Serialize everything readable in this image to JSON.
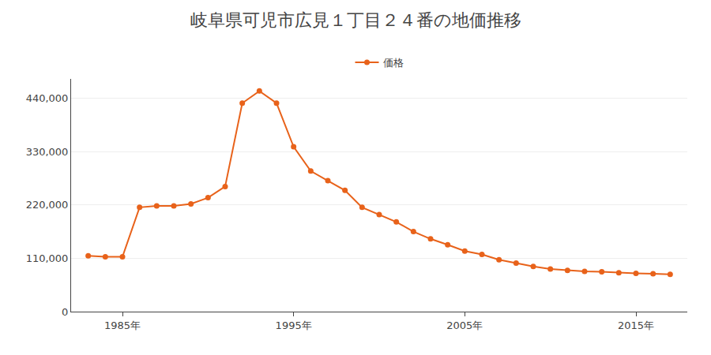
{
  "chart_data": {
    "type": "line",
    "title": "岐阜県可児市広見１丁目２４番の地価推移",
    "x": [
      1983,
      1984,
      1985,
      1986,
      1987,
      1988,
      1989,
      1990,
      1991,
      1992,
      1993,
      1994,
      1995,
      1996,
      1997,
      1998,
      1999,
      2000,
      2001,
      2002,
      2003,
      2004,
      2005,
      2006,
      2007,
      2008,
      2009,
      2010,
      2011,
      2012,
      2013,
      2014,
      2015,
      2016,
      2017
    ],
    "series": [
      {
        "name": "価格",
        "color": "#E8621A",
        "marker": "circle",
        "values": [
          115000,
          113000,
          113000,
          215000,
          218000,
          218000,
          222000,
          235000,
          258000,
          430000,
          455000,
          430000,
          340000,
          290000,
          270000,
          250000,
          215000,
          200000,
          185000,
          165000,
          150000,
          138000,
          125000,
          118000,
          107000,
          100000,
          93000,
          88000,
          85000,
          83000,
          82000,
          80000,
          79000,
          78000,
          77000
        ]
      }
    ],
    "xlim": [
      1982,
      2018
    ],
    "xticks": [
      {
        "value": 1985,
        "label": "1985年"
      },
      {
        "value": 1995,
        "label": "1995年"
      },
      {
        "value": 2005,
        "label": "2005年"
      },
      {
        "value": 2015,
        "label": "2015年"
      }
    ],
    "ylim": [
      0,
      480000
    ],
    "yticks": [
      0,
      {
        "value": 110000,
        "label": "110,000"
      },
      {
        "value": 220000,
        "label": "220,000"
      },
      {
        "value": 330000,
        "label": "330,000"
      },
      {
        "value": 440000,
        "label": "440,000"
      }
    ],
    "grid": "y",
    "legend": "top"
  }
}
